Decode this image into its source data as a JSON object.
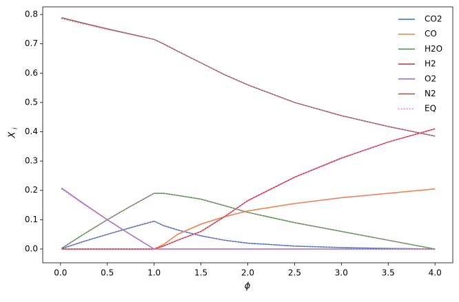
{
  "chart_data": {
    "type": "line",
    "x_label": "ϕ",
    "y_label": "X",
    "x": [
      0.01,
      0.25,
      0.5,
      0.75,
      1.0,
      1.1,
      1.25,
      1.5,
      1.75,
      2.0,
      2.5,
      3.0,
      3.5,
      4.0
    ],
    "series": [
      {
        "name": "CO2",
        "color": "#1f77b4",
        "values": [
          0.001,
          0.026,
          0.05,
          0.073,
          0.095,
          0.08,
          0.065,
          0.045,
          0.03,
          0.02,
          0.01,
          0.005,
          0.002,
          0.0
        ]
      },
      {
        "name": "CO",
        "color": "#ff7f0e",
        "values": [
          0.0,
          0.0,
          0.0,
          0.0,
          0.0,
          0.015,
          0.05,
          0.085,
          0.11,
          0.13,
          0.155,
          0.175,
          0.19,
          0.205
        ]
      },
      {
        "name": "H2O",
        "color": "#2ca02c",
        "values": [
          0.002,
          0.051,
          0.1,
          0.146,
          0.19,
          0.19,
          0.183,
          0.17,
          0.148,
          0.125,
          0.09,
          0.06,
          0.03,
          0.0
        ]
      },
      {
        "name": "H2",
        "color": "#d62728",
        "values": [
          0.0,
          0.0,
          0.0,
          0.0,
          0.0,
          0.01,
          0.03,
          0.06,
          0.11,
          0.165,
          0.245,
          0.31,
          0.365,
          0.41
        ]
      },
      {
        "name": "O2",
        "color": "#9467bd",
        "values": [
          0.208,
          0.154,
          0.1,
          0.049,
          0.0,
          0.0,
          0.0,
          0.0,
          0.0,
          0.0,
          0.0,
          0.0,
          0.0,
          0.0
        ]
      },
      {
        "name": "N2",
        "color": "#8c564b",
        "values": [
          0.789,
          0.77,
          0.751,
          0.733,
          0.715,
          0.7,
          0.675,
          0.635,
          0.595,
          0.56,
          0.5,
          0.455,
          0.418,
          0.385
        ]
      },
      {
        "name": "EQ",
        "color": "#e377c2",
        "dotted": true,
        "values": [
          [
            0.001,
            0.026,
            0.05,
            0.073,
            0.095,
            0.08,
            0.065,
            0.045,
            0.03,
            0.02,
            0.01,
            0.005,
            0.002,
            0.0
          ],
          [
            0.0,
            0.0,
            0.0,
            0.0,
            0.0,
            0.015,
            0.05,
            0.085,
            0.11,
            0.13,
            0.155,
            0.175,
            0.19,
            0.205
          ],
          [
            0.002,
            0.051,
            0.1,
            0.146,
            0.19,
            0.19,
            0.183,
            0.17,
            0.148,
            0.125,
            0.09,
            0.06,
            0.03,
            0.0
          ],
          [
            0.0,
            0.0,
            0.0,
            0.0,
            0.0,
            0.01,
            0.03,
            0.06,
            0.11,
            0.165,
            0.245,
            0.31,
            0.365,
            0.41
          ],
          [
            0.205,
            0.152,
            0.099,
            0.048,
            0.0,
            0.0,
            0.0,
            0.0,
            0.0,
            0.0,
            0.0,
            0.0,
            0.0,
            0.0
          ],
          [
            0.785,
            0.767,
            0.749,
            0.732,
            0.715,
            0.7,
            0.675,
            0.635,
            0.595,
            0.56,
            0.5,
            0.455,
            0.418,
            0.385
          ]
        ]
      }
    ],
    "xlim": [
      -0.19,
      4.19
    ],
    "ylim": [
      -0.047,
      0.826
    ],
    "xticks": [
      {
        "value": 0,
        "label": "0.0"
      },
      0.5,
      {
        "value": 1,
        "label": "1.0"
      },
      1.5,
      {
        "value": 2,
        "label": "2.0"
      },
      2.5,
      {
        "value": 3,
        "label": "3.0"
      },
      3.5,
      {
        "value": 4,
        "label": "4.0"
      }
    ],
    "yticks": [
      {
        "value": 0,
        "label": "0.0"
      },
      0.1,
      0.2,
      0.3,
      0.4,
      0.5,
      0.6,
      0.7,
      0.8
    ],
    "legend": "upper right"
  }
}
